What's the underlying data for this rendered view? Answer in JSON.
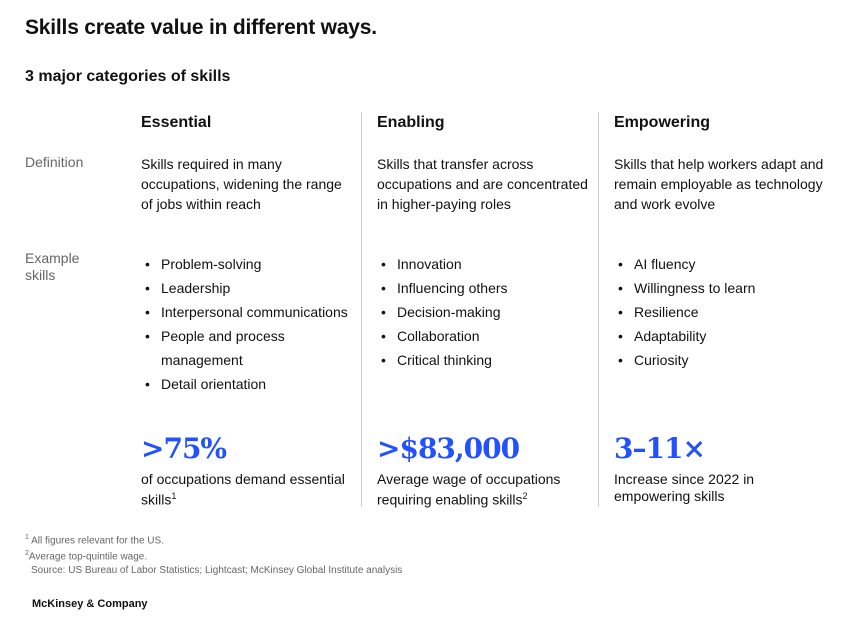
{
  "title": "Skills create value in different ways.",
  "subtitle": "3 major categories of skills",
  "row_labels": {
    "definition": "Definition",
    "example": "Example skills"
  },
  "columns": [
    {
      "heading": "Essential",
      "definition": "Skills required in many occupations, widening the range of jobs within reach",
      "skills": [
        "Problem-solving",
        "Leadership",
        "Interpersonal communications",
        "People and process management",
        "Detail orientation"
      ],
      "stat": ">75%",
      "stat_desc": "of occupations demand essential skills",
      "stat_note": "1"
    },
    {
      "heading": "Enabling",
      "definition": "Skills that transfer across occupations and are concentrated in higher-paying roles",
      "skills": [
        "Innovation",
        "Influencing others",
        "Decision-making",
        "Collaboration",
        "Critical thinking"
      ],
      "stat": ">$83,000",
      "stat_desc": "Average wage of occupations requiring enabling skills",
      "stat_note": "2"
    },
    {
      "heading": "Empowering",
      "definition": "Skills that help workers adapt and remain employable as technology and work evolve",
      "skills": [
        "AI fluency",
        "Willingness to learn",
        "Resilience",
        "Adaptability",
        "Curiosity"
      ],
      "stat": "3–11×",
      "stat_desc": "Increase since 2022 in empowering skills",
      "stat_note": ""
    }
  ],
  "footnotes": [
    {
      "mark": "1",
      "text": "All figures relevant for the US."
    },
    {
      "mark": "2",
      "text": "Average top-quintile wage."
    }
  ],
  "source": "Source: US Bureau of Labor Statistics; Lightcast; McKinsey Global Institute analysis",
  "brand": "McKinsey & Company",
  "accent_color": "#2251ff"
}
